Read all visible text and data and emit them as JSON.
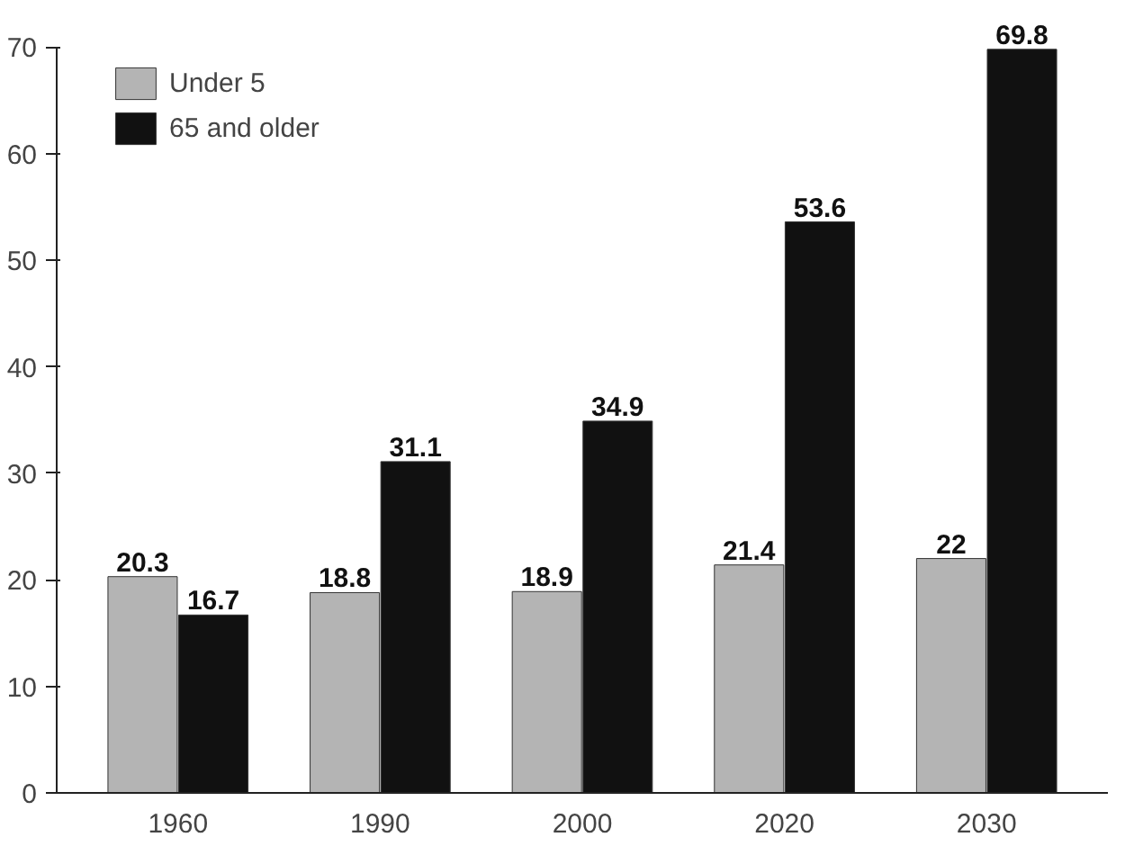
{
  "chart_data": {
    "type": "bar",
    "categories": [
      "1960",
      "1990",
      "2000",
      "2020",
      "2030"
    ],
    "series": [
      {
        "name": "Under 5",
        "color": "#b4b4b4",
        "values": [
          20.3,
          18.8,
          18.9,
          21.4,
          22
        ]
      },
      {
        "name": "65 and older",
        "color": "#111111",
        "values": [
          16.7,
          31.1,
          34.9,
          53.6,
          69.8
        ]
      }
    ],
    "ylim": [
      0,
      70
    ],
    "yticks": [
      0,
      10,
      20,
      30,
      40,
      50,
      60,
      70
    ],
    "grid": false,
    "legend": "top left",
    "data_labels": true
  }
}
